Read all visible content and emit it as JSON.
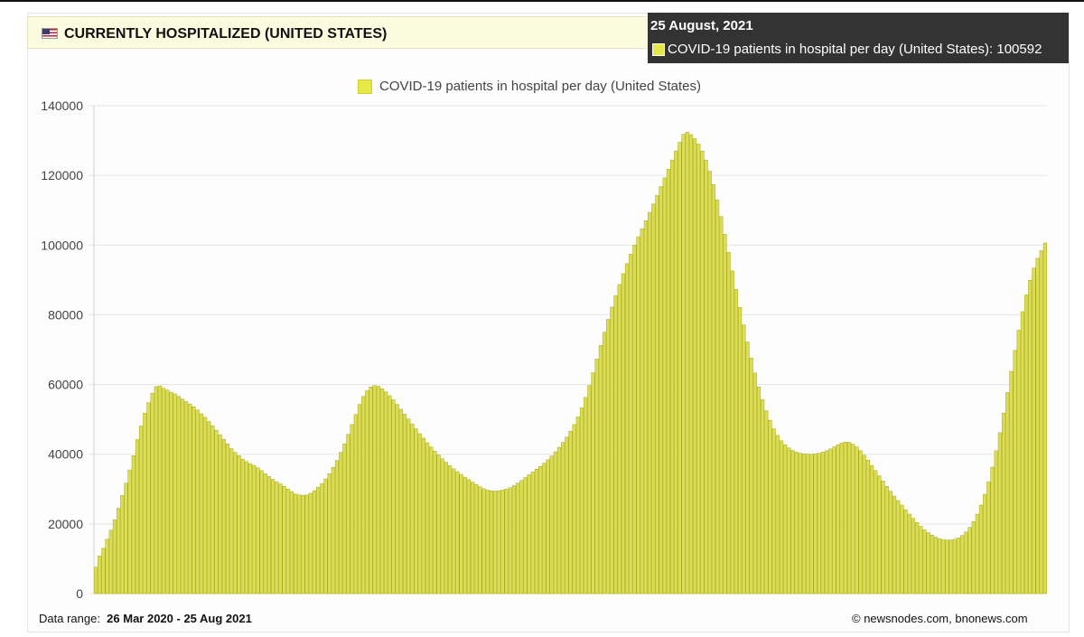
{
  "header": {
    "title": "CURRENTLY HOSPITALIZED (UNITED STATES)",
    "flag_icon": "us-flag-icon"
  },
  "tooltip": {
    "date": "25 August, 2021",
    "series_label": "COVID-19 patients in hospital per day (United States)",
    "value": "100592"
  },
  "footer": {
    "range_label": "Data range:",
    "range_value": "26 Mar 2020  -  25 Aug 2021",
    "copyright": "©  newsnodes.com, bnonews.com"
  },
  "colors": {
    "bar_fill": "#dadd55",
    "bar_stroke": "#a9ab14",
    "legend_swatch": "#e6e84a",
    "tooltip_bg": "#333333",
    "header_bg": "#fbfbe0",
    "grid": "#e5e5e5"
  },
  "chart_data": {
    "type": "bar",
    "title": "",
    "xlabel": "",
    "ylabel": "",
    "x_start": "2020-03-26",
    "x_end": "2021-08-25",
    "ylim": [
      0,
      140000
    ],
    "yticks": [
      0,
      20000,
      40000,
      60000,
      80000,
      100000,
      120000,
      140000
    ],
    "grid": true,
    "legend_position": "top-center",
    "series": [
      {
        "name": "COVID-19 patients in hospital per day (United States)",
        "values": [
          7600,
          10800,
          13000,
          15600,
          18200,
          21200,
          24500,
          28200,
          31700,
          35500,
          39600,
          44200,
          48100,
          51800,
          54800,
          57500,
          59400,
          59600,
          58900,
          58400,
          57800,
          57300,
          56600,
          55800,
          55100,
          54400,
          53600,
          52700,
          51600,
          50600,
          49400,
          48200,
          46900,
          45600,
          44300,
          43000,
          41600,
          40500,
          39600,
          38600,
          37900,
          37300,
          36800,
          36100,
          35300,
          34400,
          33600,
          32800,
          32100,
          31500,
          30800,
          30000,
          29300,
          28600,
          28300,
          28200,
          28300,
          28800,
          29500,
          30500,
          31600,
          32900,
          34400,
          36200,
          38200,
          40500,
          43000,
          45700,
          48500,
          51400,
          54300,
          56600,
          58200,
          59300,
          59700,
          59500,
          58800,
          57900,
          56800,
          55600,
          54300,
          52900,
          51500,
          50100,
          48700,
          47300,
          45900,
          44600,
          43300,
          42100,
          40900,
          39800,
          38700,
          37700,
          36700,
          35800,
          35000,
          34200,
          33400,
          32700,
          32000,
          31300,
          30700,
          30100,
          29700,
          29500,
          29400,
          29500,
          29700,
          30000,
          30400,
          31000,
          31700,
          32500,
          33300,
          34100,
          34900,
          35700,
          36500,
          37400,
          38400,
          39500,
          40700,
          42000,
          43400,
          44900,
          46600,
          48500,
          50700,
          53300,
          56300,
          59700,
          63400,
          67300,
          71200,
          75000,
          78700,
          82200,
          85500,
          88700,
          91800,
          94700,
          97400,
          100000,
          102400,
          104700,
          107000,
          109400,
          111800,
          114300,
          116800,
          119300,
          121800,
          124400,
          127000,
          129500,
          131800,
          132400,
          131700,
          130500,
          129000,
          127000,
          124400,
          121200,
          117400,
          113000,
          108200,
          103100,
          97900,
          92600,
          87300,
          82100,
          77100,
          72200,
          67600,
          63300,
          59300,
          55700,
          52500,
          49700,
          47300,
          45400,
          43900,
          42700,
          41800,
          41100,
          40600,
          40300,
          40100,
          40000,
          40000,
          40100,
          40300,
          40600,
          41000,
          41500,
          42100,
          42700,
          43200,
          43500,
          43400,
          42900,
          42100,
          41000,
          39700,
          38300,
          36800,
          35300,
          33800,
          32300,
          30800,
          29400,
          28000,
          26700,
          25400,
          24100,
          22800,
          21600,
          20400,
          19300,
          18300,
          17500,
          16800,
          16200,
          15800,
          15500,
          15400,
          15400,
          15600,
          16000,
          16700,
          17700,
          19000,
          20700,
          22800,
          25400,
          28500,
          32100,
          36300,
          41000,
          46200,
          51800,
          57700,
          63800,
          69800,
          75600,
          80900,
          85700,
          89900,
          93400,
          96200,
          98400,
          100592
        ]
      }
    ]
  }
}
